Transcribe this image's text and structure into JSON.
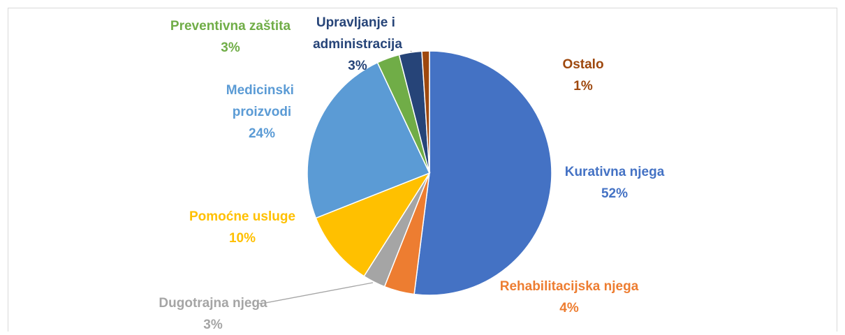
{
  "chart_data": {
    "type": "pie",
    "categories": [
      "Kurativna njega",
      "Rehabilitacijska njega",
      "Dugotrajna njega",
      "Pomoćne usluge",
      "Medicinski proizvodi",
      "Preventivna zaštita",
      "Upravljanje i administracija",
      "Ostalo"
    ],
    "values": [
      52,
      4,
      3,
      10,
      24,
      3,
      3,
      1
    ],
    "value_labels": [
      "52%",
      "4%",
      "3%",
      "10%",
      "24%",
      "3%",
      "3%",
      "1%"
    ],
    "colors": [
      "#4472c4",
      "#ed7d31",
      "#a5a5a5",
      "#ffc000",
      "#5b9bd5",
      "#70ad47",
      "#264478",
      "#9e480e"
    ]
  }
}
